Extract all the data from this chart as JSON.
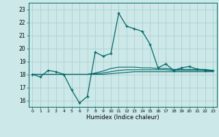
{
  "xlabel": "Humidex (Indice chaleur)",
  "bg_color": "#cce8e8",
  "grid_color": "#b0d0d0",
  "line_color": "#006666",
  "xlim": [
    -0.5,
    23.5
  ],
  "ylim": [
    15.5,
    23.5
  ],
  "yticks": [
    16,
    17,
    18,
    19,
    20,
    21,
    22,
    23
  ],
  "xticks": [
    0,
    1,
    2,
    3,
    4,
    5,
    6,
    7,
    8,
    9,
    10,
    11,
    12,
    13,
    14,
    15,
    16,
    17,
    18,
    19,
    20,
    21,
    22,
    23
  ],
  "line1_x": [
    0,
    1,
    2,
    3,
    4,
    5,
    6,
    7,
    8,
    9,
    10,
    11,
    12,
    13,
    14,
    15,
    16,
    17,
    18,
    19,
    20,
    21,
    22,
    23
  ],
  "line1_y": [
    18.0,
    17.8,
    18.3,
    18.2,
    18.0,
    16.8,
    15.8,
    16.3,
    19.7,
    19.4,
    19.6,
    22.7,
    21.7,
    21.5,
    21.3,
    20.3,
    18.5,
    18.8,
    18.3,
    18.5,
    18.6,
    18.4,
    18.3,
    18.3
  ],
  "line2_x": [
    0,
    1,
    2,
    3,
    4,
    5,
    6,
    7,
    8,
    9,
    10,
    11,
    12,
    13,
    14,
    15,
    16,
    17,
    18,
    19,
    20,
    21,
    22,
    23
  ],
  "line2_y": [
    18.0,
    18.0,
    18.0,
    18.0,
    18.0,
    18.0,
    18.0,
    18.0,
    18.0,
    18.0,
    18.05,
    18.1,
    18.15,
    18.2,
    18.2,
    18.2,
    18.2,
    18.2,
    18.2,
    18.2,
    18.2,
    18.2,
    18.2,
    18.2
  ],
  "line3_x": [
    0,
    1,
    2,
    3,
    4,
    5,
    6,
    7,
    8,
    9,
    10,
    11,
    12,
    13,
    14,
    15,
    16,
    17,
    18,
    19,
    20,
    21,
    22,
    23
  ],
  "line3_y": [
    18.0,
    18.0,
    18.0,
    18.0,
    18.0,
    18.0,
    18.0,
    18.0,
    18.05,
    18.1,
    18.2,
    18.3,
    18.35,
    18.35,
    18.35,
    18.35,
    18.35,
    18.35,
    18.3,
    18.3,
    18.3,
    18.3,
    18.3,
    18.25
  ],
  "line4_x": [
    0,
    1,
    2,
    3,
    4,
    5,
    6,
    7,
    8,
    9,
    10,
    11,
    12,
    13,
    14,
    15,
    16,
    17,
    18,
    19,
    20,
    21,
    22,
    23
  ],
  "line4_y": [
    18.0,
    18.0,
    18.0,
    18.0,
    18.0,
    18.0,
    18.0,
    18.0,
    18.1,
    18.25,
    18.45,
    18.55,
    18.55,
    18.55,
    18.5,
    18.5,
    18.45,
    18.45,
    18.38,
    18.38,
    18.38,
    18.38,
    18.38,
    18.3
  ]
}
